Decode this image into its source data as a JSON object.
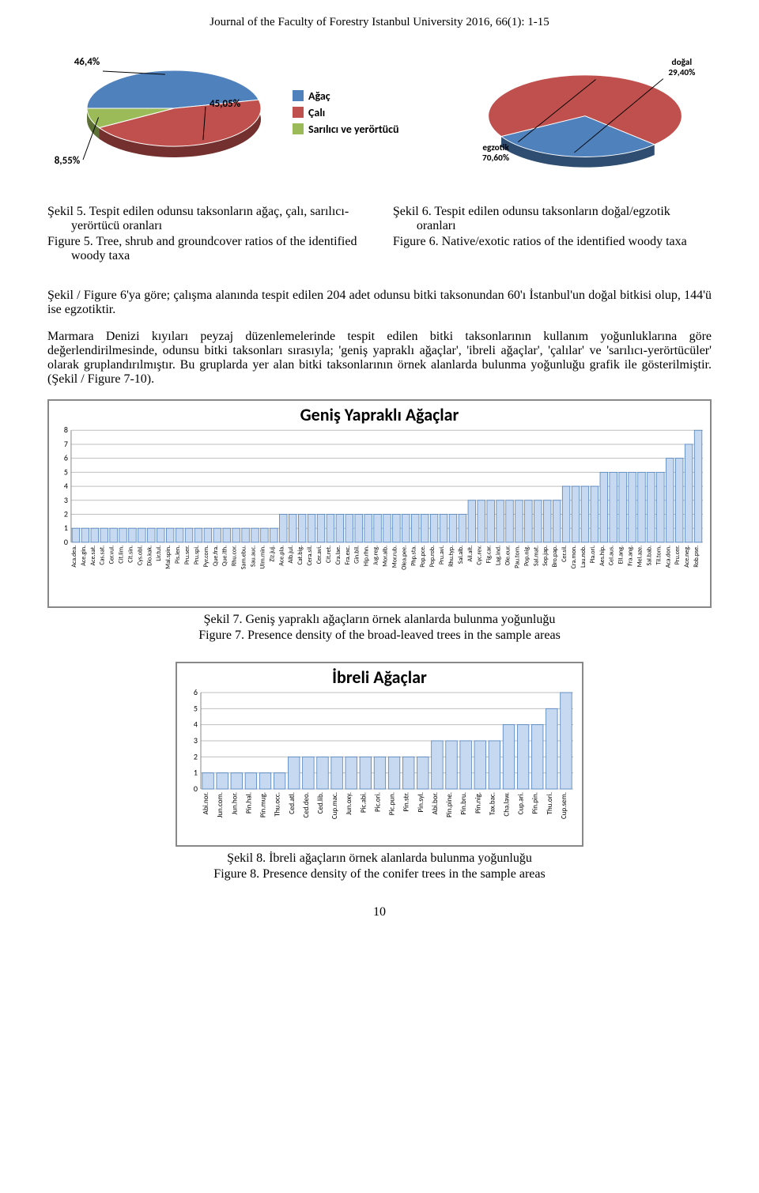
{
  "running_head": "Journal of the Faculty of Forestry Istanbul University 2016, 66(1): 1-15",
  "page_number": "10",
  "pie_left": {
    "type": "pie",
    "background_color": "#ffffff",
    "slices": [
      {
        "label": "46,4%",
        "value": 46.4,
        "color": "#4f81bd"
      },
      {
        "label": "45,05%",
        "value": 45.05,
        "color": "#c0504d"
      },
      {
        "label": "8,55%",
        "value": 8.55,
        "color": "#9bbb59"
      }
    ],
    "legend": [
      {
        "label": "Ağaç",
        "color": "#4f81bd"
      },
      {
        "label": "Çalı",
        "color": "#c0504d"
      },
      {
        "label": "Sarılıcı ve yerörtücü",
        "color": "#9bbb59"
      }
    ],
    "label_fontsize": 12
  },
  "pie_right": {
    "type": "pie",
    "background_color": "#ffffff",
    "slices": [
      {
        "label": "egzotik 70,60%",
        "value": 70.6,
        "color": "#c0504d"
      },
      {
        "label": "doğal 29,40%",
        "value": 29.4,
        "color": "#4f81bd"
      }
    ],
    "label_fontsize": 12
  },
  "caption5": {
    "tr": "Şekil 5. Tespit edilen odunsu taksonların ağaç, çalı, sarılıcı-yerörtücü oranları",
    "en": "Figure 5. Tree, shrub and groundcover ratios of the identified woody taxa"
  },
  "caption6": {
    "tr": "Şekil 6. Tespit edilen odunsu taksonların doğal/egzotik oranları",
    "en": "Figure 6. Native/exotic ratios of the identified  woody taxa"
  },
  "para1": "Şekil / Figure 6'ya göre; çalışma alanında tespit edilen 204 adet odunsu bitki taksonundan 60'ı İstanbul'un doğal bitkisi olup, 144'ü ise egzotiktir.",
  "para2": "Marmara Denizi kıyıları peyzaj düzenlemelerinde tespit edilen bitki taksonlarının kullanım yoğunluklarına göre değerlendirilmesinde, odunsu bitki taksonları sırasıyla; 'geniş yapraklı ağaçlar', 'ibreli ağaçlar', 'çalılar' ve 'sarılıcı-yerörtücüler' olarak gruplandırılmıştır. Bu gruplarda yer alan bitki taksonlarının örnek alanlarda bulunma yoğunluğu grafik ile gösterilmiştir. (Şekil / Figure 7-10).",
  "chart7": {
    "type": "bar",
    "title": "Geniş Yapraklı Ağaçlar",
    "title_fontsize": 22,
    "ylim": [
      0,
      8
    ],
    "yticks": [
      0,
      1,
      2,
      3,
      4,
      5,
      6,
      7,
      8
    ],
    "bar_color": "#c6d9f1",
    "bar_border": "#4f81bd",
    "grid_color": "#bfbfbf",
    "background_color": "#ffffff",
    "label_fontsize": 8,
    "bar_width": 0.8,
    "categories": [
      "Aca.dea.",
      "Ace.gin.",
      "Ace.sat.",
      "Cas.sat.",
      "Cer.vul.",
      "Cit.lim.",
      "Cit.sin.",
      "Cys.obl.",
      "Dio.kak.",
      "Lir.tul.",
      "Mal.spin.",
      "Pis.len.",
      "Pru.ser.",
      "Pru.spi.",
      "Pyr.com.",
      "Que.fra.",
      "Que.ith.",
      "Rhu.cor.",
      "Sam.ebu.",
      "Sau.auc.",
      "Ulm.min.",
      "Ziz.juj.",
      "Ace.pla.",
      "Alb.jul.",
      "Cat.big.",
      "Cera.sil.",
      "Cer.avi.",
      "Cit.ret.",
      "Cra.lae.",
      "Fra.exc.",
      "Gin.bil.",
      "Hip.rhn.",
      "Jug.reg.",
      "Mor.alb.",
      "Mor.rub.",
      "Olea.pee.",
      "Php.sta.",
      "Pop.pce.",
      "Pop.rob.",
      "Pru.avi.",
      "Rhu.typ.",
      "Sal.alb.",
      "Ail.alt.",
      "Cyc.rev.",
      "Fig.car.",
      "Lag.ind.",
      "Ole.eur.",
      "Pau.tom.",
      "Pop.nig.",
      "Sal.mat.",
      "Sop.jap.",
      "Bro.pap.",
      "Cer.sil.",
      "Cra.mon.",
      "Lau.nob.",
      "Pla.ori.",
      "Aes.hip.",
      "Cel.aus.",
      "Ell.ang.",
      "Fra.ang.",
      "Mel.aze.",
      "Sal.bab.",
      "Til.tom.",
      "Aca.don.",
      "Pru.cer.",
      "Ace.neg.",
      "Rob.pse."
    ],
    "values": [
      1,
      1,
      1,
      1,
      1,
      1,
      1,
      1,
      1,
      1,
      1,
      1,
      1,
      1,
      1,
      1,
      1,
      1,
      1,
      1,
      1,
      1,
      2,
      2,
      2,
      2,
      2,
      2,
      2,
      2,
      2,
      2,
      2,
      2,
      2,
      2,
      2,
      2,
      2,
      2,
      2,
      2,
      3,
      3,
      3,
      3,
      3,
      3,
      3,
      3,
      3,
      3,
      4,
      4,
      4,
      4,
      5,
      5,
      5,
      5,
      5,
      5,
      5,
      6,
      6,
      7,
      8
    ]
  },
  "caption7": {
    "tr": "Şekil 7. Geniş yapraklı ağaçların örnek alanlarda bulunma yoğunluğu",
    "en": "Figure 7. Presence density of the broad-leaved trees in the sample areas"
  },
  "chart8": {
    "type": "bar",
    "title": "İbreli Ağaçlar",
    "title_fontsize": 22,
    "ylim": [
      0,
      6
    ],
    "yticks": [
      0,
      1,
      2,
      3,
      4,
      5,
      6
    ],
    "bar_color": "#c6d9f1",
    "bar_border": "#4f81bd",
    "grid_color": "#bfbfbf",
    "background_color": "#ffffff",
    "label_fontsize": 9,
    "bar_width": 0.8,
    "categories": [
      "Abi.nor.",
      "Jun.com.",
      "Jun.hor.",
      "Pin.hal.",
      "Pin.mug.",
      "Thu.occ.",
      "Ced.atl.",
      "Ced.deo.",
      "Ced.lib.",
      "Cup.mac.",
      "Jun.oxy.",
      "Pic.abi.",
      "Pic.ori.",
      "Pic.pun.",
      "Pin.str.",
      "Pin.syl.",
      "Abi.bor.",
      "Pin.pine.",
      "Pin.bru.",
      "Pin.nig.",
      "Tax.bac.",
      "Cha.law.",
      "Cup.ari.",
      "Pin.pin.",
      "Thu.ori.",
      "Cup.sem."
    ],
    "values": [
      1,
      1,
      1,
      1,
      1,
      1,
      2,
      2,
      2,
      2,
      2,
      2,
      2,
      2,
      2,
      2,
      3,
      3,
      3,
      3,
      3,
      4,
      4,
      4,
      5,
      6
    ]
  },
  "caption8": {
    "tr": "Şekil 8. İbreli ağaçların örnek alanlarda bulunma yoğunluğu",
    "en": "Figure 8. Presence density of the conifer trees in the sample areas"
  }
}
